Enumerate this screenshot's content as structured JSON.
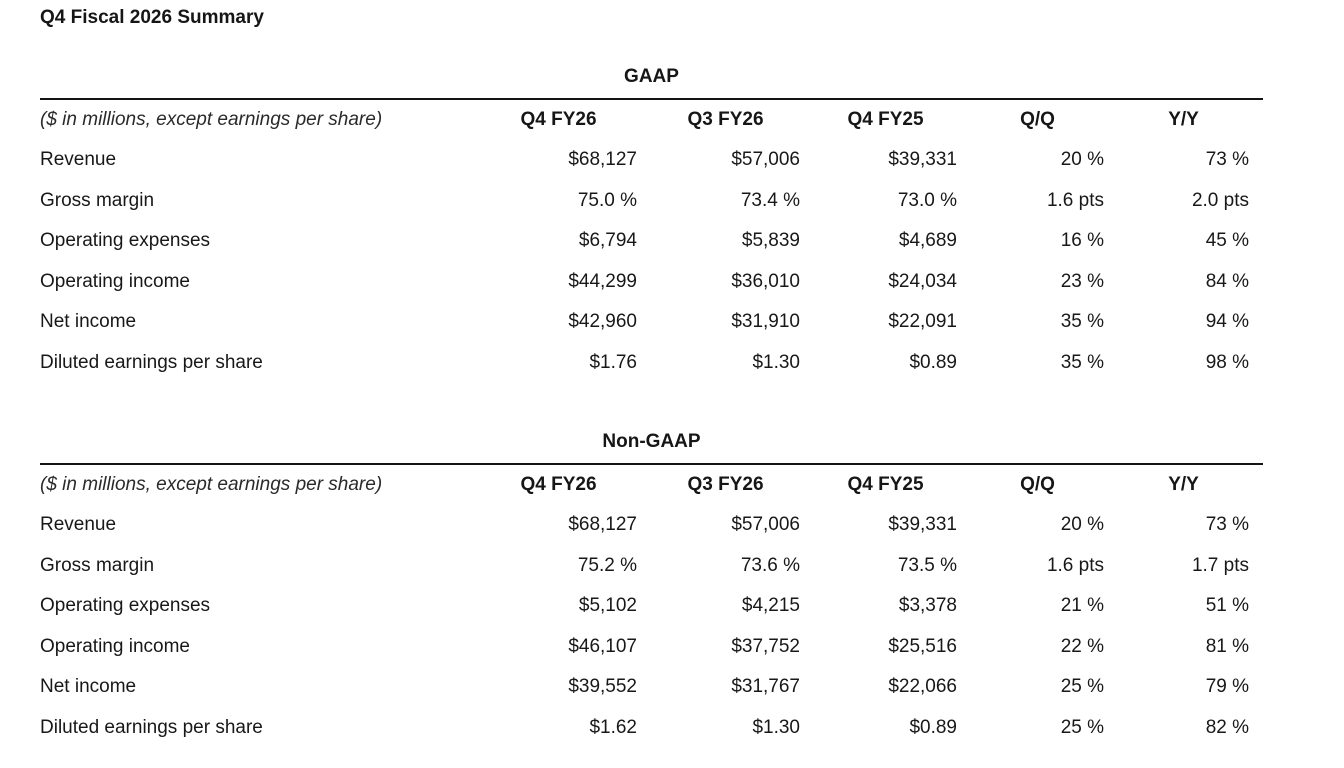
{
  "page": {
    "title": "Q4 Fiscal 2026 Summary"
  },
  "colors": {
    "text": "#181818",
    "rule": "#141414",
    "background": "#ffffff"
  },
  "tables": [
    {
      "title": "GAAP",
      "note": "($ in millions, except earnings per share)",
      "columns": [
        "Q4 FY26",
        "Q3 FY26",
        "Q4 FY25",
        "Q/Q",
        "Y/Y"
      ],
      "rows": [
        {
          "label": "Revenue",
          "values": [
            "$68,127",
            "$57,006",
            "$39,331",
            "20 %",
            "73 %"
          ]
        },
        {
          "label": "Gross margin",
          "values": [
            "75.0 %",
            "73.4 %",
            "73.0 %",
            "1.6 pts",
            "2.0 pts"
          ]
        },
        {
          "label": "Operating expenses",
          "values": [
            "$6,794",
            "$5,839",
            "$4,689",
            "16 %",
            "45 %"
          ]
        },
        {
          "label": "Operating income",
          "values": [
            "$44,299",
            "$36,010",
            "$24,034",
            "23 %",
            "84 %"
          ]
        },
        {
          "label": "Net income",
          "values": [
            "$42,960",
            "$31,910",
            "$22,091",
            "35 %",
            "94 %"
          ]
        },
        {
          "label": "Diluted earnings per share",
          "values": [
            "$1.76",
            "$1.30",
            "$0.89",
            "35 %",
            "98 %"
          ]
        }
      ]
    },
    {
      "title": "Non-GAAP",
      "note": "($ in millions, except earnings per share)",
      "columns": [
        "Q4 FY26",
        "Q3 FY26",
        "Q4 FY25",
        "Q/Q",
        "Y/Y"
      ],
      "rows": [
        {
          "label": "Revenue",
          "values": [
            "$68,127",
            "$57,006",
            "$39,331",
            "20 %",
            "73 %"
          ]
        },
        {
          "label": "Gross margin",
          "values": [
            "75.2 %",
            "73.6 %",
            "73.5 %",
            "1.6 pts",
            "1.7 pts"
          ]
        },
        {
          "label": "Operating expenses",
          "values": [
            "$5,102",
            "$4,215",
            "$3,378",
            "21 %",
            "51 %"
          ]
        },
        {
          "label": "Operating income",
          "values": [
            "$46,107",
            "$37,752",
            "$25,516",
            "22 %",
            "81 %"
          ]
        },
        {
          "label": "Net income",
          "values": [
            "$39,552",
            "$31,767",
            "$22,066",
            "25 %",
            "79 %"
          ]
        },
        {
          "label": "Diluted earnings per share",
          "values": [
            "$1.62",
            "$1.30",
            "$0.89",
            "25 %",
            "82 %"
          ]
        }
      ]
    }
  ]
}
